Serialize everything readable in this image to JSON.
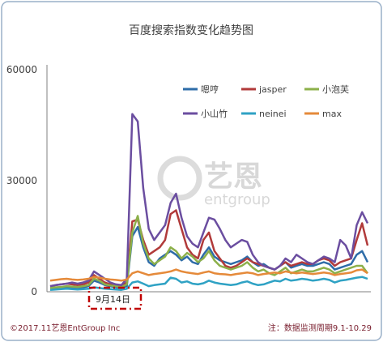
{
  "chart_data": {
    "type": "line",
    "title": "百度搜索指数变化趋势图",
    "ylim": [
      0,
      60000
    ],
    "yticks": [
      "60000",
      "30000",
      "0"
    ],
    "ytick_values": [
      60000,
      30000,
      0
    ],
    "x": [
      1,
      2,
      3,
      4,
      5,
      6,
      7,
      8,
      9,
      10,
      11,
      12,
      13,
      14,
      15,
      16,
      17,
      18,
      19,
      20,
      21,
      22,
      23,
      24,
      25,
      26,
      27,
      28,
      29,
      30,
      31,
      32,
      33,
      34,
      35,
      36,
      37,
      38,
      39,
      40,
      41,
      42,
      43,
      44,
      45,
      46,
      47,
      48,
      49,
      50,
      51,
      52,
      53,
      54,
      55,
      56,
      57,
      58,
      59
    ],
    "legend_position": "top-right",
    "series": [
      {
        "name": "嗯哼",
        "color": "#2e6ca8",
        "values": [
          800,
          900,
          1000,
          1200,
          1100,
          1000,
          1200,
          1500,
          3000,
          2500,
          1800,
          1500,
          1200,
          1000,
          1500,
          15000,
          17500,
          12000,
          8000,
          7000,
          9000,
          10000,
          11000,
          10000,
          8500,
          9500,
          8000,
          7500,
          10000,
          12000,
          9500,
          8500,
          8000,
          7500,
          8000,
          8500,
          9500,
          8000,
          7000,
          7500,
          6500,
          6000,
          7000,
          8000,
          6500,
          7000,
          7500,
          7000,
          7000,
          7500,
          8000,
          7500,
          6000,
          6500,
          7000,
          7500,
          10000,
          11000,
          8000
        ]
      },
      {
        "name": "jasper",
        "color": "#b13a3a",
        "values": [
          1500,
          1800,
          2000,
          2200,
          2000,
          1800,
          2000,
          2500,
          4500,
          3500,
          2500,
          2000,
          1800,
          1500,
          2500,
          19000,
          19500,
          14000,
          10000,
          11000,
          12000,
          14000,
          21000,
          22000,
          17000,
          12000,
          10000,
          9000,
          14000,
          16000,
          11000,
          9000,
          7000,
          6500,
          7000,
          8000,
          9000,
          8000,
          7500,
          7000,
          6500,
          6000,
          7000,
          8000,
          7000,
          7500,
          8000,
          7500,
          7500,
          8500,
          9000,
          8500,
          7000,
          8000,
          8500,
          9000,
          14000,
          18500,
          12500
        ]
      },
      {
        "name": "小泡芙",
        "color": "#8cb04a",
        "values": [
          1000,
          1200,
          1300,
          1500,
          1400,
          1300,
          1500,
          1800,
          3500,
          3000,
          2000,
          1700,
          1500,
          1300,
          2000,
          16000,
          20500,
          13000,
          9000,
          7500,
          8500,
          9500,
          12000,
          11000,
          9000,
          10500,
          9500,
          8000,
          9000,
          11000,
          8500,
          7000,
          6500,
          6000,
          6500,
          7000,
          8000,
          6500,
          5500,
          6000,
          5000,
          4500,
          5500,
          6500,
          5000,
          5500,
          6000,
          5500,
          5500,
          6000,
          6500,
          6000,
          5000,
          5500,
          6000,
          6500,
          7000,
          7000,
          5000
        ]
      },
      {
        "name": "小山竹",
        "color": "#6b4ea0",
        "values": [
          1500,
          1800,
          2000,
          2200,
          2500,
          2200,
          2500,
          3000,
          5500,
          4500,
          3500,
          2500,
          2000,
          1800,
          3500,
          48000,
          46000,
          28000,
          17000,
          14000,
          16000,
          18000,
          24000,
          26500,
          20000,
          15000,
          13000,
          12000,
          16000,
          20000,
          19500,
          17000,
          14000,
          12000,
          13000,
          14000,
          13500,
          10000,
          8000,
          7000,
          6500,
          6000,
          7000,
          9000,
          8000,
          10000,
          9000,
          8000,
          7500,
          8500,
          9500,
          9000,
          8000,
          14000,
          12500,
          9000,
          18000,
          21500,
          18500
        ]
      },
      {
        "name": "neinei",
        "color": "#2fa2c4",
        "values": [
          500,
          600,
          700,
          800,
          700,
          600,
          700,
          800,
          1200,
          1000,
          800,
          700,
          600,
          500,
          800,
          2500,
          2800,
          2200,
          1500,
          1800,
          2000,
          2200,
          3800,
          3500,
          2500,
          2800,
          2200,
          2000,
          2300,
          3000,
          2500,
          2200,
          2000,
          1800,
          2000,
          2500,
          2800,
          2200,
          1800,
          2000,
          2500,
          3000,
          2800,
          3500,
          3000,
          3200,
          3500,
          3300,
          3000,
          3200,
          3500,
          3200,
          2500,
          3000,
          3200,
          3500,
          3800,
          4000,
          3500
        ]
      },
      {
        "name": "max",
        "color": "#e58a3a",
        "values": [
          3000,
          3200,
          3400,
          3500,
          3300,
          3200,
          3300,
          3500,
          4000,
          3800,
          3500,
          3300,
          3200,
          3000,
          3300,
          5000,
          5500,
          5000,
          4500,
          4800,
          5000,
          5200,
          5500,
          6000,
          5500,
          5200,
          5000,
          4800,
          5200,
          5500,
          5000,
          4800,
          4700,
          4500,
          4800,
          5000,
          5200,
          5000,
          4500,
          4800,
          5000,
          5200,
          5000,
          5500,
          5200,
          5000,
          5200,
          5000,
          4800,
          5000,
          5200,
          5000,
          4500,
          4800,
          5000,
          5200,
          5800,
          6000,
          5000
        ]
      }
    ],
    "annotation": "9月14日"
  },
  "watermark": {
    "big": "艺恩",
    "small": "entgroup"
  },
  "footer": {
    "left": "©2017.11艺恩EntGroup Inc",
    "right": "注：数据监测周期9.1-10.29"
  },
  "colors": {
    "border": "#9ab0c8",
    "axis": "#808080",
    "callout": "#c00000"
  }
}
